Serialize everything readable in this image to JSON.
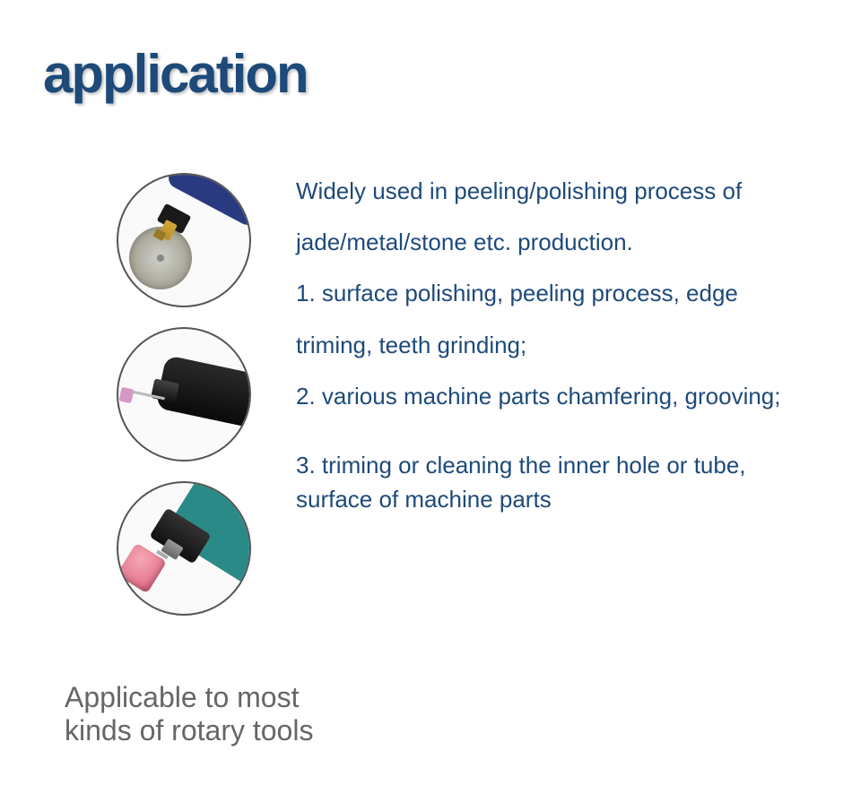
{
  "title": "application",
  "title_color": "#1e4a7a",
  "title_fontsize": 60,
  "text_color": "#1e4a7a",
  "text_fontsize": 26,
  "footer_color": "#666666",
  "footer_fontsize": 32,
  "intro": "Widely used in peeling/polishing process of jade/metal/stone etc. production.",
  "points": {
    "p1": "1. surface polishing, peeling process, edge triming, teeth grinding;",
    "p2": "2. various machine parts chamfering, grooving;",
    "p3": "3. triming or cleaning the  inner hole or tube, surface of machine parts"
  },
  "footer_line1": "Applicable to most",
  "footer_line2": "kinds of rotary tools",
  "circles": [
    {
      "name": "rotary-tool-cutting-disc",
      "tool_color": "#2a3a80",
      "accent_color": "#d4a838",
      "attachment_color": "#aaa89a"
    },
    {
      "name": "rotary-tool-grinding-bit",
      "tool_color": "#0a0a0a",
      "accent_color": "#bbbbbb",
      "attachment_color": "#d698c8"
    },
    {
      "name": "rotary-tool-sanding-drum",
      "tool_color": "#2a8a88",
      "accent_color": "#333333",
      "attachment_color": "#e67890"
    }
  ],
  "circle_border_color": "#555555",
  "background_color": "#ffffff"
}
